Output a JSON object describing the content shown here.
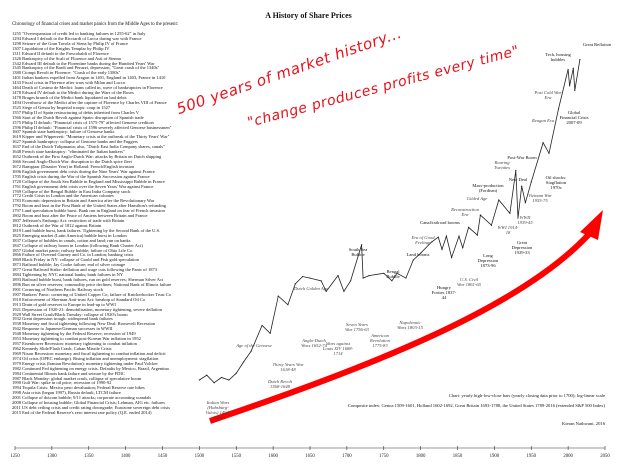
{
  "title": "A History of Share Prices",
  "subtitle": "Chronology of financial crises and market panics from the Middle Ages to the present:",
  "chronology": [
    "1255 \"Overexpansion of credit led to banking failures in 1255-62\" in Italy",
    "1294 Edward I default to the Ricciardi of Lucca during war with France",
    "1298 Seizure of the Gran Tavola of Siena by Philip IV of France",
    "1307 Liquidation of the Knights Templar by Philip IV",
    "1311 Edward II default to the Frescobaldi of Florence",
    "1326 Bankruptcy of the Scali of Florence and Asti of Sienna",
    "1342 Edward III default to the Florentine banks during the Hundred Years' War",
    "1345 Bankruptcy of the Bardi and Peruzzi, depression, \"Great crash of the 1340s\"",
    "1380 Ciompi Revolt in Florence: \"Crash of the early 1380s\"",
    "1401 Italian bankers expelled from Aragon in 1401, England in 1403, France in 1410",
    "1433 Fiscal crisis in Florence after wars with Milan and Lucca",
    "1464 Death of Cosimo de Medici: loans called in, wave of bankruptcies in Florence",
    "1478 Edward IV default to the Medici during the Wars of the Roses",
    "1478 Bruges branch of the Medici bank liquidated on bad debts",
    "1494 Overthrow of the Medici after the capture of Florence by Charles VIII of France",
    "1525 Siege of Genoa by Imperial troops: coup in 1527",
    "1557 Philip II of Spain restructuring of debts inherited from Charles V",
    "1566 Start of the Dutch Revolt against Spain: disruption of Spanish trade",
    "1575 Philip II default: \"Financial crisis of 1575-79\" affected Genoese creditors",
    "1596 Philip II default: \"Financial crisis of 1596 severely affected Genoese businessmen\"",
    "1607 Spanish state bankruptcy: failure of Genoese banks",
    "1619 Kipper und Wipperzeit: \"Monetary crisis at the outbreak of the Thirty Years' War\"",
    "1627 Spanish bankruptcy: collapse of Genoese banks and the Fuggers",
    "1637 End of the Dutch Tulipmania; also, \"Dutch East India Company shares, canals\"",
    "1648 French state bankruptcy: \"eliminated the Italian bankers\"",
    "1652 Outbreak of the First Anglo-Dutch War: attacks by Britain on Dutch shipping",
    "1666 Second Anglo-Dutch War: disruption to the Dutch spice fleet",
    "1672 Rampjaar (Disaster Year) in Holland: French/English invasion",
    "1696 English government debt crisis during the Nine Years' War against France",
    "1705 English crisis during the War of the Spanish Succession against France",
    "1720 Collapse of the South Sea Bubble in England and Mississippi Bubble in France",
    "1761 English government debt crisis over the Seven Years' War against France",
    "1769 Collapse of the Bengal Bubble in East India Company stock",
    "1772 Credit Crisis in London and the American colonies",
    "1783 Economic depression in Britain and America after the Revolutionary War",
    "1792 Boom and bust in the First Bank of the United States after Hamilton's refunding",
    "1797 Land speculation bubble burst. Bank run in England on fear of French invasion",
    "1802 Boom and bust after the Peace of Amiens between Britain and France",
    "1807 Jefferson's Embargo Act: restriction of trade with Britain",
    "1812 Outbreak of the War of 1812 against Britain",
    "1819 Land bubble burst, bank failures. Tightening by the Second Bank of the U.S.",
    "1825 Emerging market (Latin America) bubble burst in London",
    "1837 Collapse of bubbles in canals, cotton and land; run on banks",
    "1847 Collapse of railway boom in London (following Bank Charter Act)",
    "1857 Global market panic; railway bubble; failure of Ohio Life Co.",
    "1866 Failure of Overend Gurney and Co. in London; banking crisis",
    "1869 Black Friday in NY: collapse of Gould and Fisk gold speculation",
    "1873 Railroad bubble; Jay Cooke failure; end of silver coinage",
    "1877 Great Railroad Strike: deflation and wage cuts following the Panic of 1873",
    "1884 Tightening by NYC national banks; bank failures in NY",
    "1893 Railroad bubble burst, bank failures, run on gold reserves; Sherman Silver Act",
    "1896 Run on silver reserves; commodity price declines; National Bank of Illinois failure",
    "1901 Cornering of Northern Pacific Railway stock",
    "1907 Bankers' Panic: cornering of United Copper Co; failure of Knickerbocker Trust Co",
    "1910 Enforcement of Sherman Anti-trust Act: breakup of Standard Oil Co",
    "1913 Drain of gold reserves to Europe in lead-up to WWI",
    "1921 Depression of 1920-21: demobilisation, monetary tightening, severe deflation",
    "1929 Wall Street Crash/Black Tuesday: collapse of 1920's boom",
    "1932 Great depression trough: widespread bank failures",
    "1938 Monetary and fiscal tightening following New Deal: Roosevelt Recession",
    "1942 Response to Japanese/German successes in WWII",
    "1948 Monetary tightening by the Federal Reserve; recession of 1949",
    "1953 Monetary tightening to combat post-Korean War inflation in 1952",
    "1957 Eisenhower Recession: monetary tightening to combat inflation",
    "1962 Kennedy Slide/Flash Crash; Cuban Missile Crisis",
    "1969 Nixon Recession: monetary and fiscal tightening to combat inflation and deficit",
    "1974 Oil crisis (OPEC embargo). Rising inflation and unemployment: stagflation",
    "1979 Energy crisis (Iranian Revolution): monetary tightening under Paul Volcker",
    "1982 Continued Fed tightening on energy crisis. Defaults by Mexico, Brazil, Argentina",
    "1984 Continental Illinois bank failure and seizure by the FDIC",
    "1987 Black Monday: global market crash, collapse of speculative boom",
    "1990 Gulf War: spike in oil price; recession of 1990-92",
    "1994 Tequila Crisis: Mexico peso devaluation; Federal Reserve rate hikes",
    "1998 Asia crisis (began 1997), Russia default, LTCM failure",
    "2001 Collapse of dotcom bubble; 9/11 attacks; corporate accounting scandals",
    "2008 Collapse of housing bubble; Global Financial Crisis; Lehman, AIG etc. failures",
    "2011 US debt ceiling crisis and credit rating downgrade; Eurozone sovereign debt crisis",
    "2015 End of the Federal Reserve's zero interest rate policy (Q.E. ended 2014)"
  ],
  "handwriting": {
    "line1": "500 years of market history...",
    "line2": "\"change produces profits every time\"",
    "color": "#e8101a"
  },
  "notes": {
    "chart_type": "Chart: yearly high-low-close bars (yearly closing data prior to 1700); log-linear scale",
    "composite": "Composite index: Genoa 1509-1601, Holland 1602-1692, Great Britain 1693-1788, the United States 1789-2016 (extended S&P 500 Index)",
    "author": "Kieran Nathwani, 2016"
  },
  "annotations": {
    "great_reflation": "Great Reflation",
    "tech_housing": "Tech, housing bubbles",
    "post_cold_war": "Post Cold War Era",
    "reagan": "Reagan Era",
    "gfc": "Global Financial Crisis 2007-09",
    "post_war": "Post-War Boom",
    "oil_shocks": "Oil shocks: Stagflation 1970s",
    "roaring": "Roaring Twenties",
    "new_deal": "New Deal",
    "mass_production": "Mass-production (Fordism)",
    "gilded": "Gilded Age",
    "reconstruction": "Reconstruction Era",
    "canal": "Canal/railroad booms",
    "good_feelings": "Era of Good Feelings",
    "land": "Land booms",
    "civil_war": "U.S. Civil War 1861-65",
    "hungry": "Hungry Forties 1837-44",
    "long_depression": "Long Depression 1873-96",
    "great_depression": "Great Depression 1929-33",
    "ww1": "WWI 1914-18",
    "ww2": "WWII 1939-45",
    "vietnam": "Vietnam War 1955-75",
    "south_sea": "South Sea Bubble",
    "bengal": "Bengal Bubble",
    "napoleonic": "Napoleonic Wars 1803-15",
    "seven_years": "Seven Years War 1756-63",
    "american_rev": "American Revolution 1775-83",
    "dutch_golden": "Dutch Golden Age",
    "anglo_dutch": "Anglo-Dutch Wars 1652-74",
    "louis": "Wars against Louis XIV 1688-1714",
    "genoese": "Age of the Genoese",
    "thirty_years": "Thirty Years War 1618-48",
    "dutch_revolt": "Dutch Revolt 1568-1648",
    "italian_wars": "Italian Wars (Habsburg-Valois) 1494-1559"
  },
  "chart_data": {
    "type": "line",
    "title": "A History of Share Prices",
    "xlabel": "",
    "ylabel": "",
    "yscale": "log",
    "xlim": [
      1250,
      2050
    ],
    "ylim": [
      0.01,
      2200
    ],
    "x_ticks": [
      1250,
      1300,
      1350,
      1400,
      1450,
      1500,
      1550,
      1600,
      1650,
      1700,
      1750,
      1800,
      1850,
      1900,
      1950,
      2000,
      2050
    ],
    "series": [
      {
        "name": "Composite share price index",
        "x": [
          1500,
          1510,
          1520,
          1530,
          1540,
          1550,
          1560,
          1570,
          1585,
          1596,
          1607,
          1620,
          1630,
          1640,
          1650,
          1665,
          1672,
          1688,
          1696,
          1705,
          1720,
          1722,
          1730,
          1750,
          1761,
          1768,
          1780,
          1790,
          1800,
          1815,
          1824,
          1829,
          1835,
          1842,
          1852,
          1857,
          1865,
          1877,
          1881,
          1896,
          1906,
          1921,
          1929,
          1932,
          1937,
          1942,
          1950,
          1966,
          1974,
          1987,
          2000,
          2002,
          2007,
          2009,
          2016
        ],
        "values": [
          0.01,
          0.012,
          0.009,
          0.011,
          0.01,
          0.013,
          0.02,
          0.03,
          0.081,
          0.06,
          0.25,
          0.18,
          0.4,
          0.53,
          0.5,
          0.45,
          0.3,
          0.55,
          0.3,
          0.45,
          1.8,
          0.5,
          0.55,
          0.6,
          0.45,
          0.6,
          0.5,
          1.0,
          1.3,
          2.0,
          2.4,
          1.5,
          2.5,
          1.1,
          2.5,
          1.6,
          3.5,
          2.6,
          5.6,
          3.8,
          10,
          6,
          31,
          5,
          17,
          9,
          20,
          90,
          60,
          330,
          1500,
          800,
          1570,
          670,
          2200
        ]
      }
    ]
  }
}
